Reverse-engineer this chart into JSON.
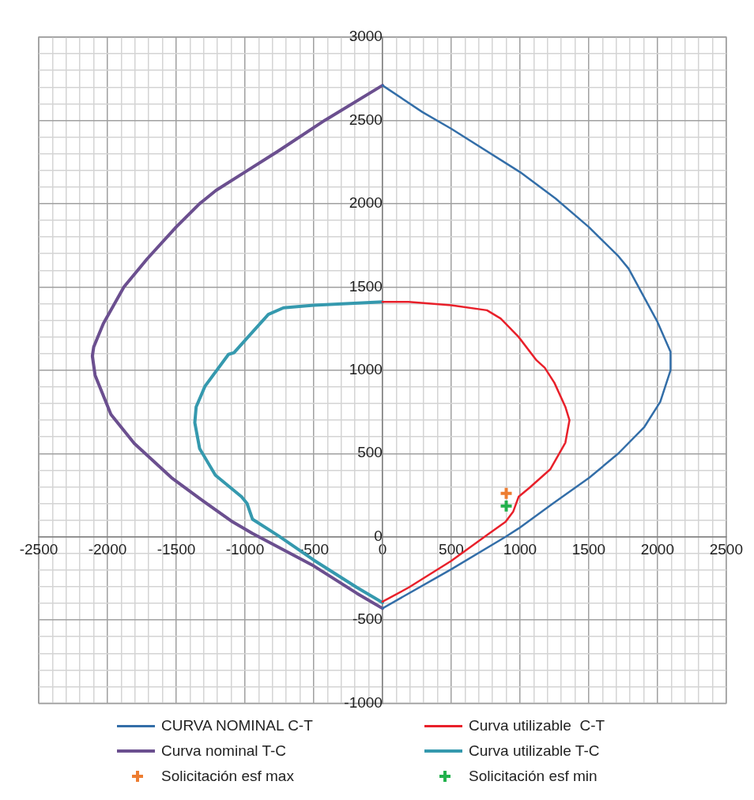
{
  "chart_data": {
    "type": "line",
    "legend": "bottom",
    "grid": true,
    "xlim": [
      -2500,
      2500
    ],
    "xticks": [
      -2500,
      {
        "value": -2400,
        "label": null
      },
      {
        "value": -2300,
        "label": null
      },
      {
        "value": -2200,
        "label": null
      },
      {
        "value": -2100,
        "label": null
      },
      -2000,
      {
        "value": -1900,
        "label": null
      },
      {
        "value": -1800,
        "label": null
      },
      {
        "value": -1700,
        "label": null
      },
      {
        "value": -1600,
        "label": null
      },
      -1500,
      {
        "value": -1400,
        "label": null
      },
      {
        "value": -1300,
        "label": null
      },
      {
        "value": -1200,
        "label": null
      },
      {
        "value": -1100,
        "label": null
      },
      -1000,
      {
        "value": -900,
        "label": null
      },
      {
        "value": -800,
        "label": null
      },
      {
        "value": -700,
        "label": null
      },
      {
        "value": -600,
        "label": null
      },
      -500,
      {
        "value": -400,
        "label": null
      },
      {
        "value": -300,
        "label": null
      },
      {
        "value": -200,
        "label": null
      },
      {
        "value": -100,
        "label": null
      },
      0,
      {
        "value": 100,
        "label": null
      },
      {
        "value": 200,
        "label": null
      },
      {
        "value": 300,
        "label": null
      },
      {
        "value": 400,
        "label": null
      },
      500,
      {
        "value": 600,
        "label": null
      },
      {
        "value": 700,
        "label": null
      },
      {
        "value": 800,
        "label": null
      },
      {
        "value": 900,
        "label": null
      },
      1000,
      {
        "value": 1100,
        "label": null
      },
      {
        "value": 1200,
        "label": null
      },
      {
        "value": 1300,
        "label": null
      },
      {
        "value": 1400,
        "label": null
      },
      1500,
      {
        "value": 1600,
        "label": null
      },
      {
        "value": 1700,
        "label": null
      },
      {
        "value": 1800,
        "label": null
      },
      {
        "value": 1900,
        "label": null
      },
      2000,
      {
        "value": 2100,
        "label": null
      },
      {
        "value": 2200,
        "label": null
      },
      {
        "value": 2300,
        "label": null
      },
      {
        "value": 2400,
        "label": null
      },
      2500
    ],
    "ylim": [
      -1000,
      3000
    ],
    "yticks": [
      -1000,
      {
        "value": -900,
        "label": null
      },
      {
        "value": -800,
        "label": null
      },
      {
        "value": -700,
        "label": null
      },
      {
        "value": -600,
        "label": null
      },
      -500,
      {
        "value": -400,
        "label": null
      },
      {
        "value": -300,
        "label": null
      },
      {
        "value": -200,
        "label": null
      },
      {
        "value": -100,
        "label": null
      },
      0,
      {
        "value": 100,
        "label": null
      },
      {
        "value": 200,
        "label": null
      },
      {
        "value": 300,
        "label": null
      },
      {
        "value": 400,
        "label": null
      },
      500,
      {
        "value": 600,
        "label": null
      },
      {
        "value": 700,
        "label": null
      },
      {
        "value": 800,
        "label": null
      },
      {
        "value": 900,
        "label": null
      },
      1000,
      {
        "value": 1100,
        "label": null
      },
      {
        "value": 1200,
        "label": null
      },
      {
        "value": 1300,
        "label": null
      },
      {
        "value": 1400,
        "label": null
      },
      1500,
      {
        "value": 1600,
        "label": null
      },
      {
        "value": 1700,
        "label": null
      },
      {
        "value": 1800,
        "label": null
      },
      {
        "value": 1900,
        "label": null
      },
      2000,
      {
        "value": 2100,
        "label": null
      },
      {
        "value": 2200,
        "label": null
      },
      {
        "value": 2300,
        "label": null
      },
      {
        "value": 2400,
        "label": null
      },
      2500,
      {
        "value": 2600,
        "label": null
      },
      {
        "value": 2700,
        "label": null
      },
      {
        "value": 2800,
        "label": null
      },
      {
        "value": 2900,
        "label": null
      },
      3000
    ],
    "series": [
      {
        "name": "CURVA NOMINAL C-T",
        "color": "#336ea8",
        "x": [
          0,
          290,
          500,
          1000,
          1260,
          1500,
          1710,
          1790,
          2000,
          2095,
          2095,
          2020,
          1905,
          1715,
          1505,
          1240,
          990,
          895,
          500,
          0
        ],
        "values": [
          2710,
          2550,
          2450,
          2190,
          2030,
          1860,
          1690,
          1610,
          1290,
          1110,
          1000,
          810,
          660,
          500,
          355,
          200,
          50,
          0,
          -195,
          -430
        ]
      },
      {
        "name": "Curva utilizable  C-T",
        "color": "#e8202a",
        "x": [
          0,
          190,
          500,
          760,
          860,
          990,
          1120,
          1180,
          1250,
          1330,
          1360,
          1330,
          1220,
          1070,
          990,
          950,
          895,
          760,
          500,
          190,
          0
        ],
        "values": [
          1410,
          1410,
          1390,
          1360,
          1310,
          1200,
          1060,
          1015,
          925,
          780,
          700,
          565,
          405,
          295,
          240,
          150,
          90,
          10,
          -145,
          -305,
          -390
        ]
      },
      {
        "name": "Curva nominal T-C",
        "color": "#6b4f8f",
        "x": [
          0,
          -420,
          -760,
          -1000,
          -1210,
          -1330,
          -1500,
          -1710,
          -1880,
          -2030,
          -2100,
          -2110,
          -2090,
          -1975,
          -1805,
          -1535,
          -1330,
          -1100,
          -945,
          -500,
          -185,
          0
        ],
        "values": [
          2710,
          2500,
          2315,
          2190,
          2080,
          2000,
          1860,
          1670,
          1500,
          1280,
          1140,
          1085,
          970,
          735,
          560,
          355,
          230,
          95,
          20,
          -175,
          -340,
          -430
        ]
      },
      {
        "name": "Curva utilizable T-C",
        "color": "#3599ae",
        "x": [
          0,
          -500,
          -720,
          -830,
          -945,
          -1080,
          -1120,
          -1290,
          -1355,
          -1365,
          -1330,
          -1215,
          -1025,
          -985,
          -945,
          -755,
          -500,
          -185,
          0
        ],
        "values": [
          1410,
          1390,
          1375,
          1335,
          1230,
          1105,
          1095,
          905,
          780,
          685,
          530,
          370,
          240,
          200,
          105,
          5,
          -140,
          -305,
          -395
        ]
      },
      {
        "name": "Solicitación esf max",
        "type": "scatter",
        "marker": "cross",
        "color": "#ed7d31",
        "x": [
          900
        ],
        "values": [
          260
        ]
      },
      {
        "name": "Solicitación esf min",
        "type": "scatter",
        "marker": "cross",
        "color": "#22b14c",
        "x": [
          900
        ],
        "values": [
          185
        ]
      }
    ]
  }
}
